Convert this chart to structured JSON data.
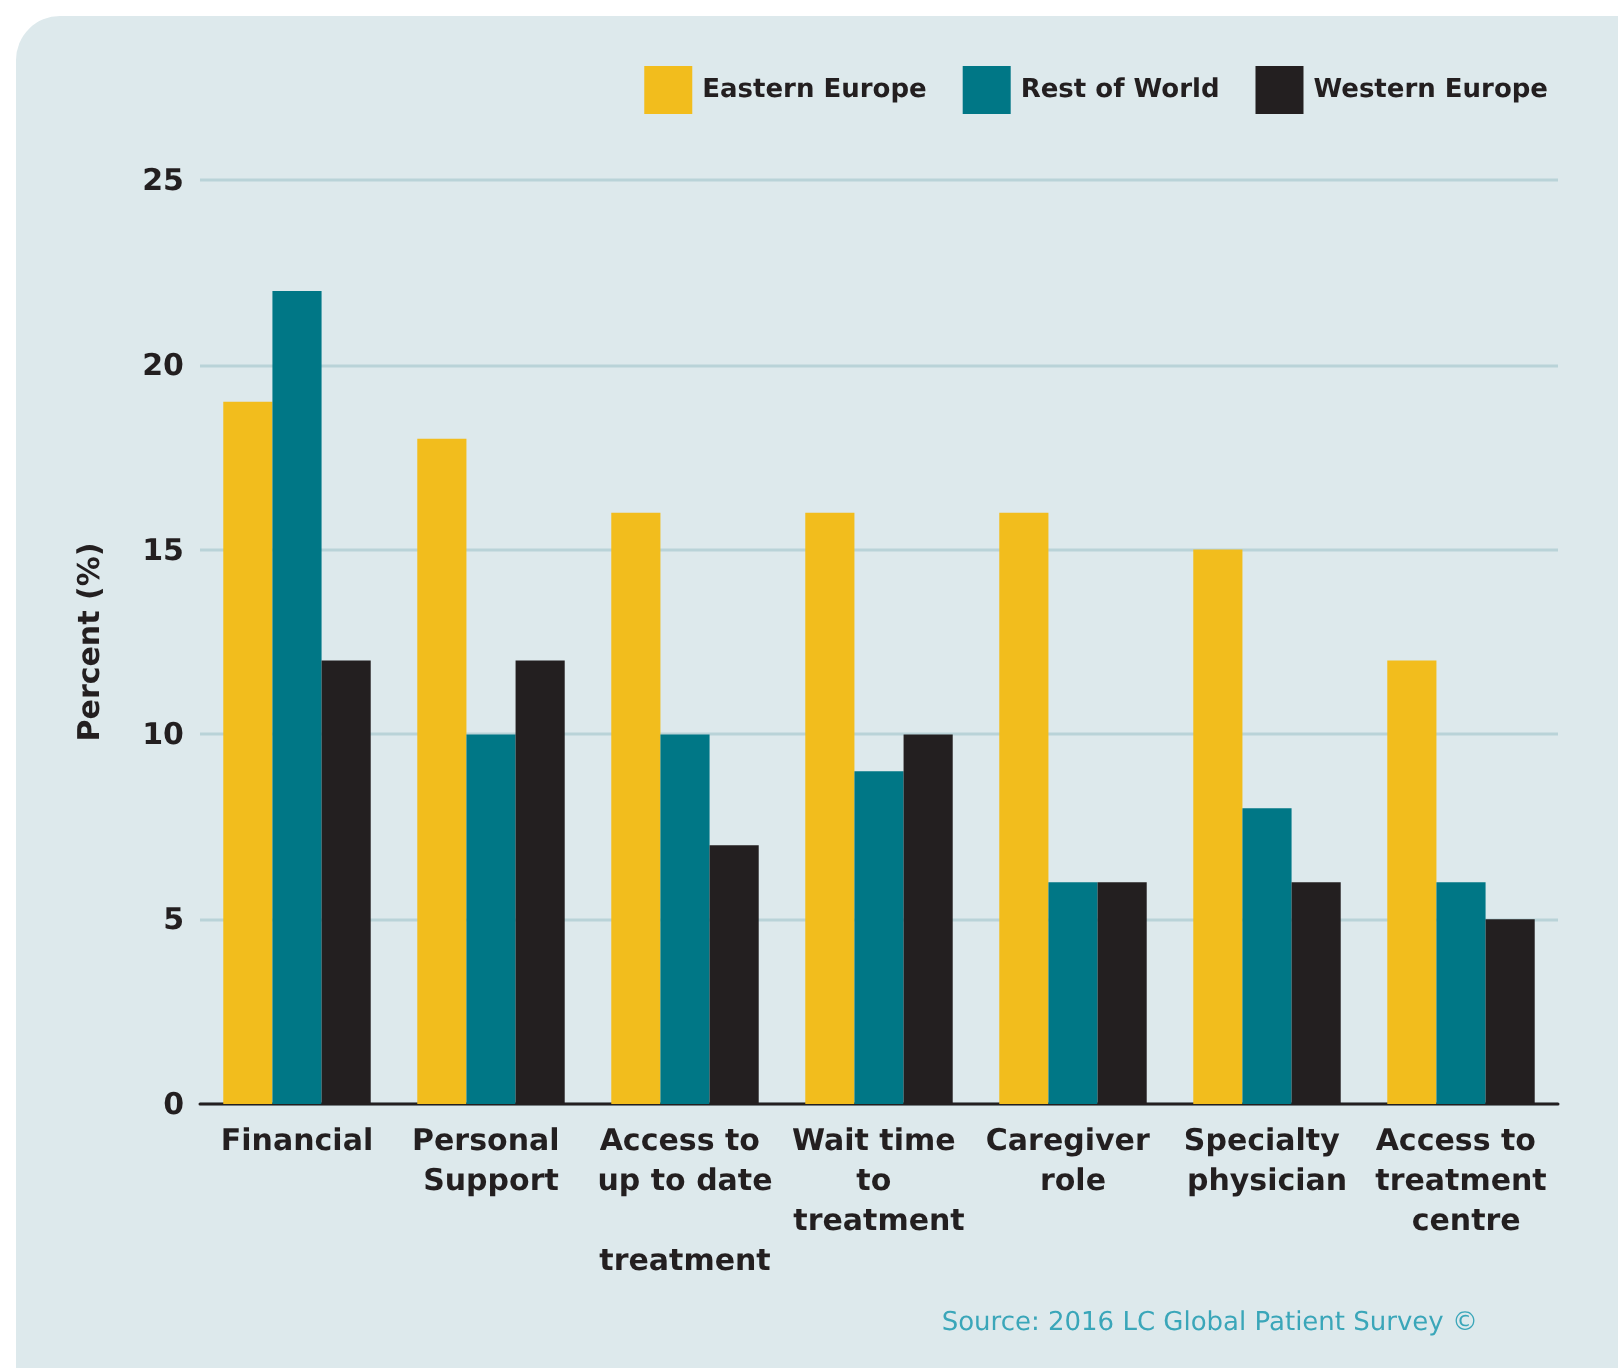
{
  "chart_data": {
    "type": "bar",
    "ylabel": "Percent (%)",
    "categories": [
      "Financial",
      "Personal Support",
      "Access to up to date treatment",
      "Wait time to treatment",
      "Caregiver role",
      "Specialty physician",
      "Access to treatment centre"
    ],
    "series": [
      {
        "name": "Eastern Europe",
        "color": "#f2bd1d",
        "values": [
          19,
          18,
          16,
          16,
          16,
          15,
          12
        ]
      },
      {
        "name": "Rest of World",
        "color": "#007786",
        "values": [
          22,
          10,
          10,
          9,
          6,
          8,
          6
        ]
      },
      {
        "name": "Western Europe",
        "color": "#231f20",
        "values": [
          12,
          12,
          7,
          10,
          6,
          6,
          5
        ]
      }
    ],
    "ylim": [
      0,
      25
    ],
    "yticks": [
      0,
      5,
      10,
      15,
      20,
      25
    ],
    "grid": "y",
    "legend": "top right",
    "annotations": [
      "Source: 2016 LC Global Patient Survey ©"
    ]
  }
}
